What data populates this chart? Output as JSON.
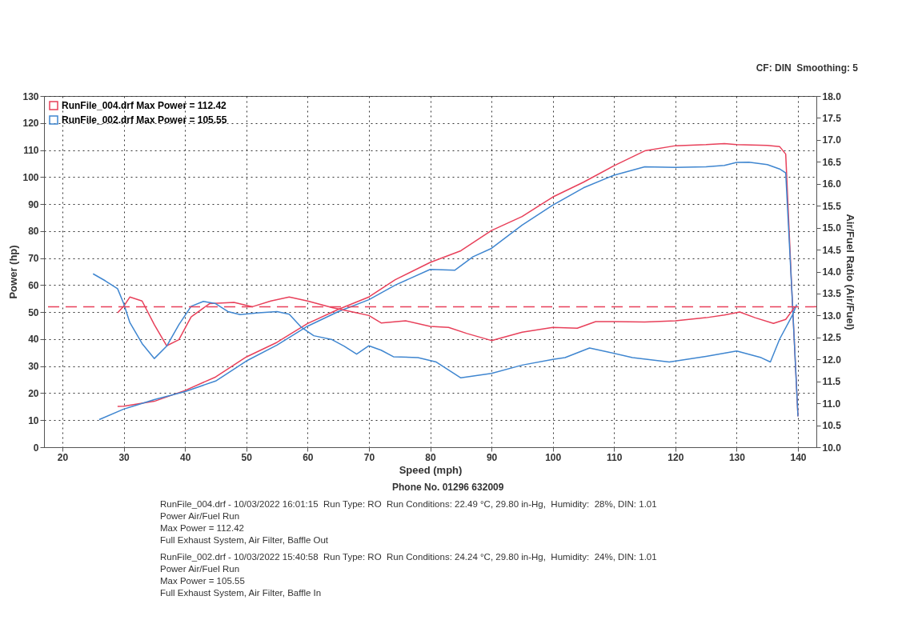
{
  "chart_data": {
    "type": "line",
    "xlabel": "Speed (mph)",
    "ylabel": "Power (hp)",
    "y2label": "Air/Fuel Ratio (Air/Fuel)",
    "xlim": [
      17,
      143
    ],
    "xticks": [
      20,
      30,
      40,
      50,
      60,
      70,
      80,
      90,
      100,
      110,
      120,
      130,
      140
    ],
    "ylim": [
      0,
      130
    ],
    "yticks": [
      0,
      10,
      20,
      30,
      40,
      50,
      60,
      70,
      80,
      90,
      100,
      110,
      120,
      130
    ],
    "y2lim": [
      10,
      18
    ],
    "y2ticks": [
      {
        "value": 10,
        "label": "10.0"
      },
      10.5,
      {
        "value": 11,
        "label": "11.0"
      },
      11.5,
      {
        "value": 12,
        "label": "12.0"
      },
      12.5,
      {
        "value": 13,
        "label": "13.0"
      },
      13.5,
      {
        "value": 14,
        "label": "14.0"
      },
      14.5,
      {
        "value": 15,
        "label": "15.0"
      },
      15.5,
      {
        "value": 16,
        "label": "16.0"
      },
      16.5,
      {
        "value": 17,
        "label": "17.0"
      },
      17.5,
      {
        "value": 18,
        "label": "18.0"
      }
    ],
    "grid": true,
    "legend": "top left",
    "series": [
      {
        "name": "RunFile_004.drf Max Power = 112.42",
        "color": "#e8405a",
        "x": [
          29,
          30,
          35,
          40,
          45,
          50,
          55,
          60,
          65,
          70,
          74.3,
          80,
          85,
          90,
          95,
          100,
          105,
          110,
          115,
          120,
          125,
          128,
          130,
          135,
          137,
          138,
          139,
          140
        ],
        "values": [
          15.1,
          15.2,
          17,
          21,
          26,
          33.4,
          38.8,
          45.8,
          51,
          55.6,
          62,
          68.4,
          72.7,
          80.2,
          85.4,
          92.6,
          98.1,
          104.2,
          109.7,
          111.6,
          112,
          112.4,
          112,
          111.7,
          111.3,
          108.5,
          57.8,
          11.4
        ]
      },
      {
        "name": "RunFile_002.drf Max Power = 105.55",
        "color": "#3f86d0",
        "x": [
          26,
          30,
          35,
          40,
          45,
          50,
          55,
          60,
          65,
          70,
          74.3,
          80,
          84,
          87,
          90,
          95,
          100,
          105,
          110,
          115,
          120,
          125,
          128,
          130,
          132,
          135,
          137,
          138,
          139,
          140
        ],
        "values": [
          10.2,
          14.1,
          17.6,
          20.6,
          24.5,
          31.9,
          37.8,
          44.8,
          50.2,
          54.6,
          60,
          65.8,
          65.5,
          70.5,
          73.6,
          82.2,
          89.6,
          96,
          100.7,
          103.8,
          103.6,
          103.8,
          104.3,
          105.4,
          105.5,
          104.6,
          103,
          101.5,
          57.8,
          11.4
        ]
      },
      {
        "color": "#e8405a",
        "axis": "y2",
        "x": [
          29,
          30,
          31,
          33,
          35,
          37,
          39,
          41,
          44,
          48,
          51,
          54,
          57,
          60,
          64,
          68,
          70,
          72,
          76,
          80,
          83,
          86,
          90,
          95,
          100,
          104,
          107,
          110,
          115,
          120,
          125,
          128,
          130.5,
          133,
          136,
          138,
          139,
          139.5
        ],
        "values": [
          13.06,
          13.21,
          13.42,
          13.33,
          12.79,
          12.31,
          12.45,
          12.97,
          13.27,
          13.3,
          13.2,
          13.33,
          13.42,
          13.33,
          13.18,
          13.06,
          13.0,
          12.83,
          12.88,
          12.75,
          12.73,
          12.59,
          12.43,
          12.62,
          12.73,
          12.71,
          12.86,
          12.86,
          12.85,
          12.88,
          12.95,
          13.01,
          13.08,
          12.95,
          12.82,
          12.91,
          13.1,
          13.2
        ]
      },
      {
        "color": "#3f86d0",
        "axis": "y2",
        "x": [
          25,
          27,
          29,
          30,
          31,
          33,
          35,
          37,
          39,
          41,
          43,
          45,
          47,
          49,
          52,
          55,
          57,
          59,
          61,
          64,
          66,
          68,
          70,
          72,
          74,
          78,
          81,
          85,
          90,
          95,
          100,
          102,
          106,
          109,
          113,
          119,
          125,
          130,
          134,
          135.5,
          137,
          139,
          139.8
        ],
        "values": [
          13.95,
          13.79,
          13.61,
          13.27,
          12.84,
          12.36,
          12.02,
          12.3,
          12.79,
          13.21,
          13.32,
          13.27,
          13.09,
          13.02,
          13.06,
          13.09,
          13.03,
          12.73,
          12.54,
          12.45,
          12.3,
          12.12,
          12.31,
          12.21,
          12.06,
          12.04,
          11.94,
          11.58,
          11.68,
          11.87,
          12.0,
          12.04,
          12.26,
          12.17,
          12.04,
          11.94,
          12.07,
          12.19,
          12.04,
          11.94,
          12.46,
          12.98,
          13.25
        ]
      }
    ],
    "ref_lines": [
      {
        "axis": "y2",
        "value": 13.2,
        "color": "#e8405a",
        "line_style": "dashed"
      }
    ],
    "annotations": [
      "CF: DIN  Smoothing: 5",
      "Phone No. 01296 632009",
      "RunFile_004.drf - 10/03/2022 16:01:15  Run Type: RO  Run Conditions: 22.49 °C, 29.80 in-Hg,  Humidity:  28%, DIN: 1.01",
      "Power Air/Fuel Run",
      "Max Power = 112.42",
      "Full Exhaust System, Air Filter, Baffle Out",
      "RunFile_002.drf - 10/03/2022 15:40:58  Run Type: RO  Run Conditions: 24.24 °C, 29.80 in-Hg,  Humidity:  24%, DIN: 1.01",
      "Power Air/Fuel Run",
      "Max Power = 105.55",
      "Full Exhaust System, Air Filter, Baffle In"
    ]
  }
}
